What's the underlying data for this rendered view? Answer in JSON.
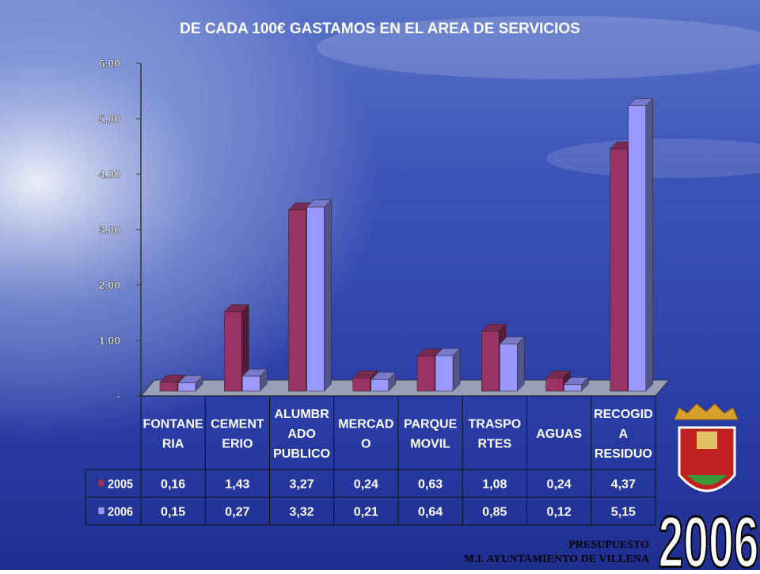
{
  "chart_data": {
    "type": "bar",
    "title": "DE CADA 100€ GASTAMOS EN EL AREA DE SERVICIOS",
    "categories": [
      [
        "FONTANE",
        "RIA"
      ],
      [
        "CEMENT",
        "ERIO"
      ],
      [
        "ALUMBR",
        "ADO",
        "PUBLICO"
      ],
      [
        "MERCAD",
        "O"
      ],
      [
        "PARQUE",
        "MOVIL"
      ],
      [
        "TRASPO",
        "RTES"
      ],
      [
        "AGUAS"
      ],
      [
        "RECOGID",
        "A",
        "RESIDUO"
      ]
    ],
    "series": [
      {
        "name": "2005",
        "color": "#993366",
        "values": [
          0.16,
          1.43,
          3.27,
          0.24,
          0.63,
          1.08,
          0.24,
          4.37
        ],
        "value_labels": [
          "0,16",
          "1,43",
          "3,27",
          "0,24",
          "0,63",
          "1,08",
          "0,24",
          "4,37"
        ]
      },
      {
        "name": "2006",
        "color": "#9999ff",
        "values": [
          0.15,
          0.27,
          3.32,
          0.21,
          0.64,
          0.85,
          0.12,
          5.15
        ],
        "value_labels": [
          "0,15",
          "0,27",
          "3,32",
          "0,21",
          "0,64",
          "0,85",
          "0,12",
          "5,15"
        ]
      }
    ],
    "ylim": [
      0,
      6
    ],
    "yticks": [
      {
        "value": 0,
        "label": "-"
      },
      {
        "value": 1,
        "label": "1.00"
      },
      {
        "value": 2,
        "label": "2.00"
      },
      {
        "value": 3,
        "label": "3.00"
      },
      {
        "value": 4,
        "label": "4.00"
      },
      {
        "value": 5,
        "label": "5.00"
      },
      {
        "value": 6,
        "label": "6.00"
      }
    ]
  },
  "footer": {
    "line1": "PRESUPUESTO",
    "line2": "M.I. AYUNTAMIENTO DE VILLENA",
    "year": "2006"
  }
}
